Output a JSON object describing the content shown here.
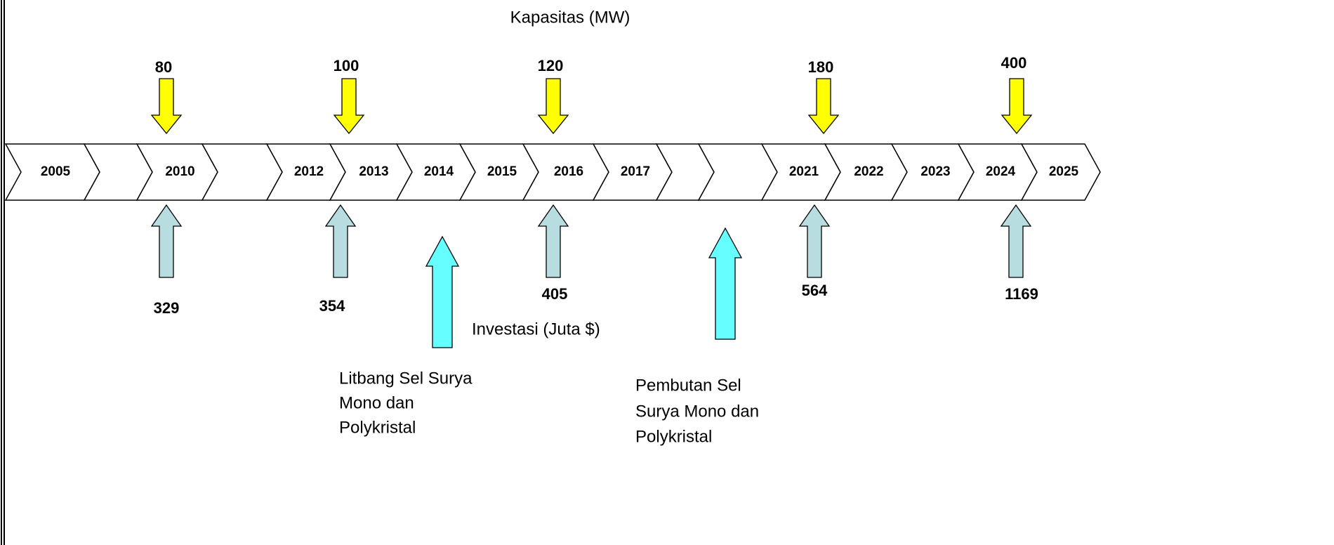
{
  "title": "Kapasitas (MW)",
  "investment_label": "Investasi (Juta $)",
  "years": [
    "2005",
    "2010",
    "2012",
    "2013",
    "2014",
    "2015",
    "2016",
    "2017",
    "2021",
    "2022",
    "2023",
    "2024",
    "2025"
  ],
  "capacity": [
    80,
    100,
    120,
    180,
    400
  ],
  "investment": [
    329,
    354,
    405,
    564,
    1169
  ],
  "milestones": [
    {
      "lines": [
        "Litbang Sel Surya",
        "Mono dan",
        "Polykristal"
      ]
    },
    {
      "lines": [
        "Pembutan Sel",
        "Surya Mono dan",
        "Polykristal"
      ]
    }
  ]
}
